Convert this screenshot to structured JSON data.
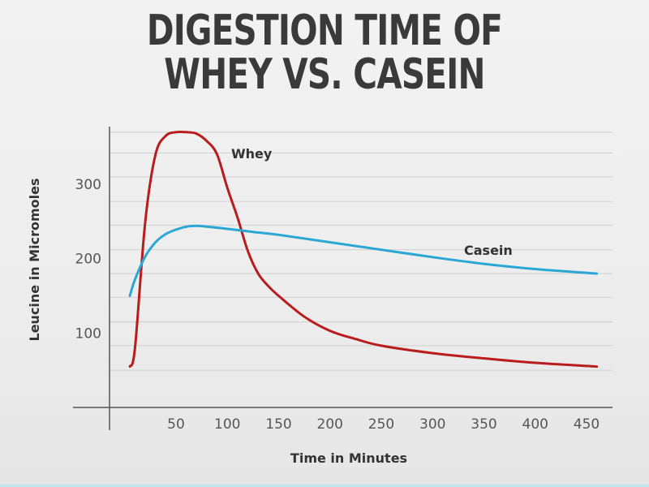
{
  "chart_data": {
    "type": "line",
    "title": "DIGESTION TIME OF WHEY VS. CASEIN",
    "title_lines": [
      "DIGESTION TIME OF",
      "WHEY VS. CASEIN"
    ],
    "xlabel": "Time in Minutes",
    "ylabel": "Leucine in Micromoles",
    "xlim": [
      0,
      460
    ],
    "ylim": [
      0,
      370
    ],
    "x_ticks": [
      50,
      100,
      150,
      200,
      250,
      300,
      350,
      400,
      450
    ],
    "y_ticks": [
      100,
      200,
      300
    ],
    "grid": true,
    "series": [
      {
        "name": "Whey",
        "color": "#b81c1c",
        "x": [
          5,
          10,
          20,
          30,
          40,
          50,
          60,
          70,
          80,
          90,
          100,
          110,
          120,
          130,
          140,
          150,
          175,
          200,
          225,
          250,
          300,
          350,
          400,
          460
        ],
        "y": [
          55,
          80,
          250,
          340,
          365,
          370,
          370,
          368,
          358,
          340,
          295,
          255,
          210,
          180,
          163,
          150,
          122,
          103,
          92,
          83,
          73,
          66,
          60,
          55
        ]
      },
      {
        "name": "Casein",
        "color": "#2aa7d4",
        "x": [
          5,
          10,
          20,
          30,
          40,
          50,
          60,
          70,
          80,
          100,
          125,
          150,
          200,
          250,
          300,
          350,
          400,
          460
        ],
        "y": [
          150,
          172,
          203,
          222,
          233,
          239,
          243,
          244,
          243,
          240,
          236,
          232,
          222,
          212,
          202,
          193,
          186,
          180
        ]
      }
    ]
  }
}
